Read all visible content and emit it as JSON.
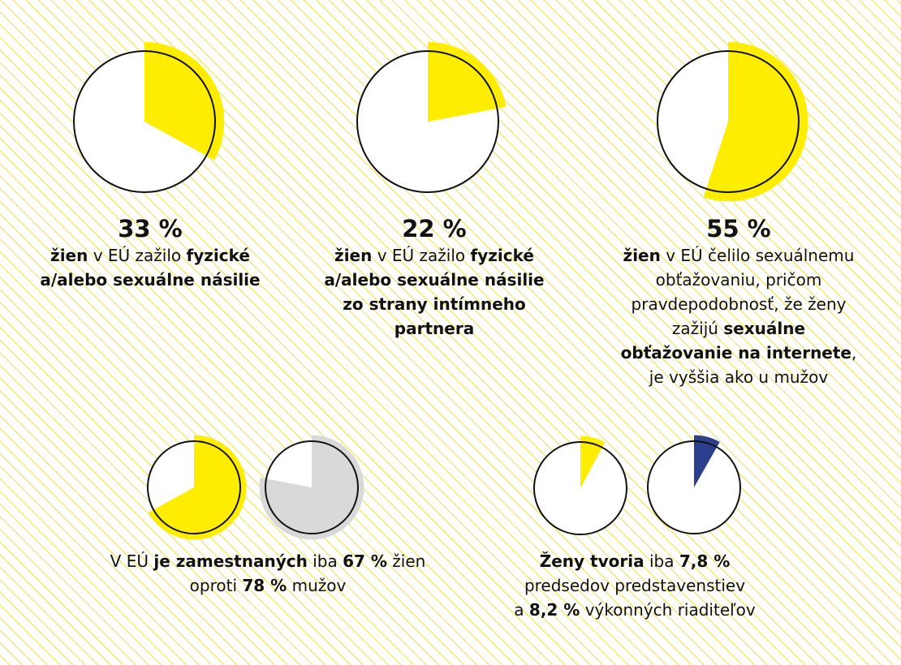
{
  "sections": [
    {
      "pies": [
        {
          "value": 33,
          "label": "33 %",
          "color": "#ffed00"
        }
      ],
      "lines": [
        [
          {
            "text": "žien",
            "bold": true
          },
          {
            "text": " v EÚ zažilo "
          },
          {
            "text": "fyzické",
            "bold": true
          }
        ],
        [
          {
            "text": "a/alebo sexuálne násilie",
            "bold": true
          }
        ]
      ]
    },
    {
      "pies": [
        {
          "value": 22,
          "label": "22 %",
          "color": "#ffed00"
        }
      ],
      "lines": [
        [
          {
            "text": "žien",
            "bold": true
          },
          {
            "text": " v EÚ zažilo "
          },
          {
            "text": "fyzické",
            "bold": true
          }
        ],
        [
          {
            "text": "a/alebo sexuálne násilie",
            "bold": true
          }
        ],
        [
          {
            "text": "zo strany intímneho",
            "bold": true
          }
        ],
        [
          {
            "text": "partnera",
            "bold": true
          }
        ]
      ]
    },
    {
      "pies": [
        {
          "value": 55,
          "label": "55 %",
          "color": "#ffed00"
        }
      ],
      "lines": [
        [
          {
            "text": "žien",
            "bold": true
          },
          {
            "text": " v EÚ čelilo sexuálnemu"
          }
        ],
        [
          {
            "text": "obťažovaniu, pričom"
          }
        ],
        [
          {
            "text": "pravdepodobnosť, že ženy"
          }
        ],
        [
          {
            "text": "zažijú "
          },
          {
            "text": "sexuálne",
            "bold": true
          }
        ],
        [
          {
            "text": "obťažovanie na internete",
            "bold": true
          },
          {
            "text": ","
          }
        ],
        [
          {
            "text": "je vyššia ako u mužov"
          }
        ]
      ]
    },
    {
      "pies": [
        {
          "value": 67,
          "color": "#ffed00"
        },
        {
          "value": 78,
          "color": "#d9d9d9"
        }
      ],
      "lines": [
        [
          {
            "text": "V EÚ "
          },
          {
            "text": "je zamestnaných",
            "bold": true
          },
          {
            "text": " iba "
          },
          {
            "text": "67 %",
            "bold": true
          },
          {
            "text": " žien"
          }
        ],
        [
          {
            "text": "oproti "
          },
          {
            "text": "78 %",
            "bold": true
          },
          {
            "text": " mužov"
          }
        ]
      ]
    },
    {
      "pies": [
        {
          "value": 7.8,
          "color": "#ffed00"
        },
        {
          "value": 8.2,
          "color": "#2b3f8c"
        }
      ],
      "lines": [
        [
          {
            "text": "Ženy tvoria",
            "bold": true
          },
          {
            "text": " iba "
          },
          {
            "text": "7,8 %",
            "bold": true
          }
        ],
        [
          {
            "text": "predsedov predstavenstiev"
          }
        ],
        [
          {
            "text": "a "
          },
          {
            "text": "8,2 %",
            "bold": true
          },
          {
            "text": " výkonných riaditeľov"
          }
        ]
      ]
    }
  ]
}
